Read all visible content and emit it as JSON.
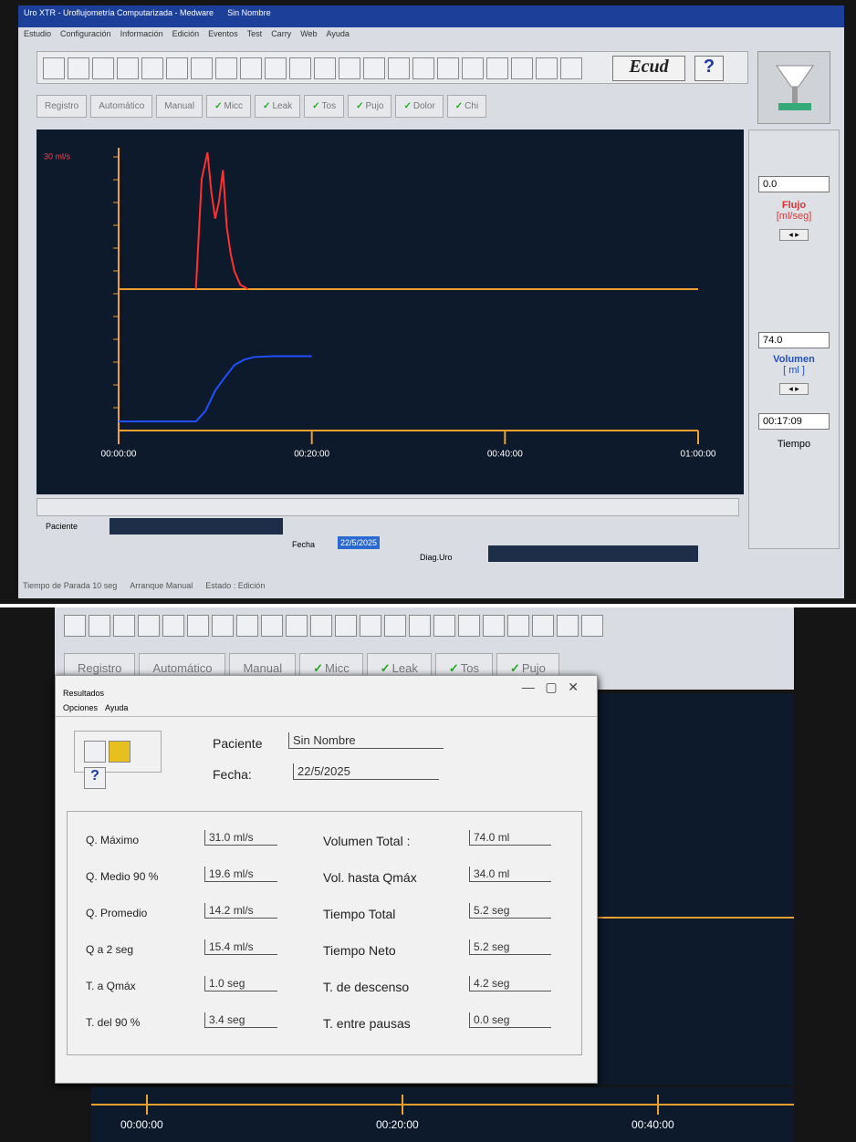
{
  "window": {
    "title": "Uro XTR - Uroflujometría Computarizada - Medware",
    "document": "Sin Nombre",
    "menu": [
      "Estudio",
      "Configuración",
      "Información",
      "Edición",
      "Eventos",
      "Test",
      "Carry",
      "Web",
      "Ayuda"
    ]
  },
  "toolbar": {
    "ecud": "Ecud",
    "help": "?"
  },
  "event_buttons": [
    "Registro",
    "Automático",
    "Manual",
    "Micc",
    "Leak",
    "Tos",
    "Pujo",
    "Dolor",
    "Chi"
  ],
  "chart_data": [
    {
      "type": "line",
      "ylabel": "30 ml/s",
      "xlim": [
        0,
        60
      ],
      "ylim": [
        0,
        30
      ],
      "xticks": [
        {
          "value": 0,
          "label": "00:00:00"
        },
        {
          "value": 20,
          "label": "00:20:00"
        },
        {
          "value": 40,
          "label": "00:40:00"
        },
        {
          "value": 60,
          "label": "01:00:00"
        }
      ],
      "series": [
        {
          "name": "Flujo",
          "color": "#ff3030",
          "x": [
            8,
            8.6,
            9.2,
            9.6,
            10,
            10.4,
            10.8,
            11.2,
            11.6,
            12,
            12.6,
            13.4
          ],
          "values": [
            0,
            25,
            31,
            22,
            16,
            20,
            27,
            14,
            8,
            4,
            1,
            0
          ]
        }
      ]
    },
    {
      "type": "line",
      "xlim": [
        0,
        60
      ],
      "ylim": [
        0,
        150
      ],
      "series": [
        {
          "name": "Volumen",
          "color": "#2050ff",
          "x": [
            0,
            8,
            9,
            10,
            11,
            12,
            13,
            14,
            16,
            20
          ],
          "values": [
            0,
            0,
            12,
            35,
            50,
            64,
            70,
            73,
            74,
            74
          ]
        }
      ]
    }
  ],
  "side": {
    "flow_value": "0.0",
    "flow_label": "Flujo",
    "flow_unit": "[ml/seg]",
    "volume_value": "74.0",
    "volume_label": "Volumen",
    "volume_unit": "[ ml ]",
    "time_value": "00:17:09",
    "time_label": "Tiempo"
  },
  "patient_bar": {
    "paciente_label": "Paciente",
    "fecha_label": "Fecha",
    "fecha": "22/5/2025",
    "diag_label": "Diag.Uro"
  },
  "status": [
    "Tiempo de Parada 10 seg",
    "Arranque Manual",
    "Estado : Edición"
  ],
  "results": {
    "title": "Resultados",
    "menu": [
      "Opciones",
      "Ayuda"
    ],
    "help": "?",
    "paciente_label": "Paciente",
    "paciente": "Sin Nombre",
    "fecha_label": "Fecha:",
    "fecha": "22/5/2025",
    "left": [
      [
        "Q. Máximo",
        "31.0  ml/s"
      ],
      [
        "Q. Medio 90 %",
        "19.6  ml/s"
      ],
      [
        "Q. Promedio",
        "14.2  ml/s"
      ],
      [
        "Q a 2 seg",
        "15.4  ml/s"
      ],
      [
        "T. a Qmáx",
        "1.0  seg"
      ],
      [
        "T. del 90 %",
        "3.4  seg"
      ]
    ],
    "right": [
      [
        "Volumen Total :",
        "74.0  ml"
      ],
      [
        "Vol. hasta Qmáx",
        "34.0  ml"
      ],
      [
        "Tiempo Total",
        "5.2  seg"
      ],
      [
        "Tiempo Neto",
        "5.2  seg"
      ],
      [
        "T. de descenso",
        "4.2  seg"
      ],
      [
        "T. entre pausas",
        "0.0  seg"
      ]
    ]
  }
}
